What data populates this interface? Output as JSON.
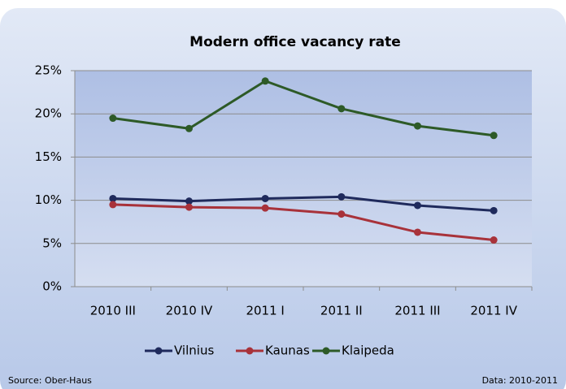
{
  "chart_data": {
    "type": "line",
    "title": "Modern office vacancy rate",
    "categories": [
      "2010 III",
      "2010 IV",
      "2011 I",
      "2011 II",
      "2011 III",
      "2011 IV"
    ],
    "series": [
      {
        "name": "Vilnius",
        "color": "#1f2a5c",
        "values": [
          10.2,
          9.9,
          10.2,
          10.4,
          9.4,
          8.8
        ]
      },
      {
        "name": "Kaunas",
        "color": "#a8323a",
        "values": [
          9.5,
          9.2,
          9.1,
          8.4,
          6.3,
          5.4
        ]
      },
      {
        "name": "Klaipeda",
        "color": "#2d5a27",
        "values": [
          19.5,
          18.3,
          23.8,
          20.6,
          18.6,
          17.5
        ]
      }
    ],
    "ylim": [
      0,
      25
    ],
    "yticks": [
      {
        "value": 0,
        "label": "0%"
      },
      {
        "value": 5,
        "label": "5%"
      },
      {
        "value": 10,
        "label": "10%"
      },
      {
        "value": 15,
        "label": "15%"
      },
      {
        "value": 20,
        "label": "20%"
      },
      {
        "value": 25,
        "label": "25%"
      }
    ],
    "grid": true,
    "legend": "bottom",
    "source": "Source: Ober-Haus",
    "note": "Data: 2010-2011"
  }
}
